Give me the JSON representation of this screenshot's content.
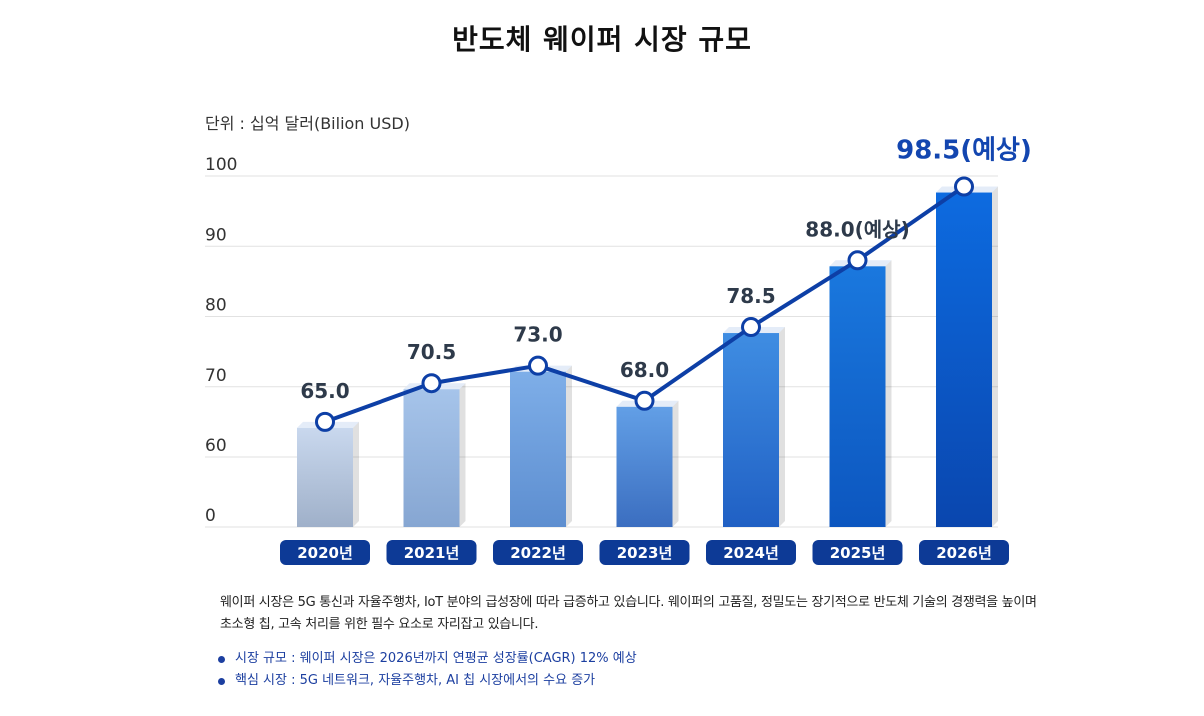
{
  "title": "반도체 웨이퍼 시장 규모",
  "unit_label": "단위 : 십억 달러(Bilion USD)",
  "chart_data": {
    "type": "bar",
    "title": "반도체 웨이퍼 시장 규모",
    "categories": [
      "2020년",
      "2021년",
      "2022년",
      "2023년",
      "2024년",
      "2025년",
      "2026년"
    ],
    "values": [
      65.0,
      70.5,
      73.0,
      68.0,
      78.5,
      88.0,
      98.5
    ],
    "value_labels": [
      "65.0",
      "70.5",
      "73.0",
      "68.0",
      "78.5",
      "88.0(예상)",
      "98.5(예상)"
    ],
    "y_ticks": [
      0,
      60,
      70,
      80,
      90,
      100
    ],
    "ylim": [
      0,
      100
    ],
    "axis_break": "0 to 60",
    "overlay_line": true,
    "grid": true
  },
  "colors": {
    "line": "#0d3fa6",
    "highlight_label": "#1346b0",
    "year_badge": "#0d3a96",
    "bullet_text": "#1c3fa0"
  },
  "description": "웨이퍼 시장은 5G 통신과 자율주행차, IoT 분야의 급성장에 따라 급증하고 있습니다. 웨이퍼의 고품질, 정밀도는 장기적으로 반도체 기술의 경쟁력을 높이며 초소형 칩, 고속 처리를 위한 필수 요소로 자리잡고 있습니다.",
  "bullets": [
    "시장 규모 : 웨이퍼 시장은 2026년까지 연평균 성장률(CAGR) 12% 예상",
    "핵심 시장 : 5G 네트워크, 자율주행차, AI 칩 시장에서의 수요 증가"
  ]
}
